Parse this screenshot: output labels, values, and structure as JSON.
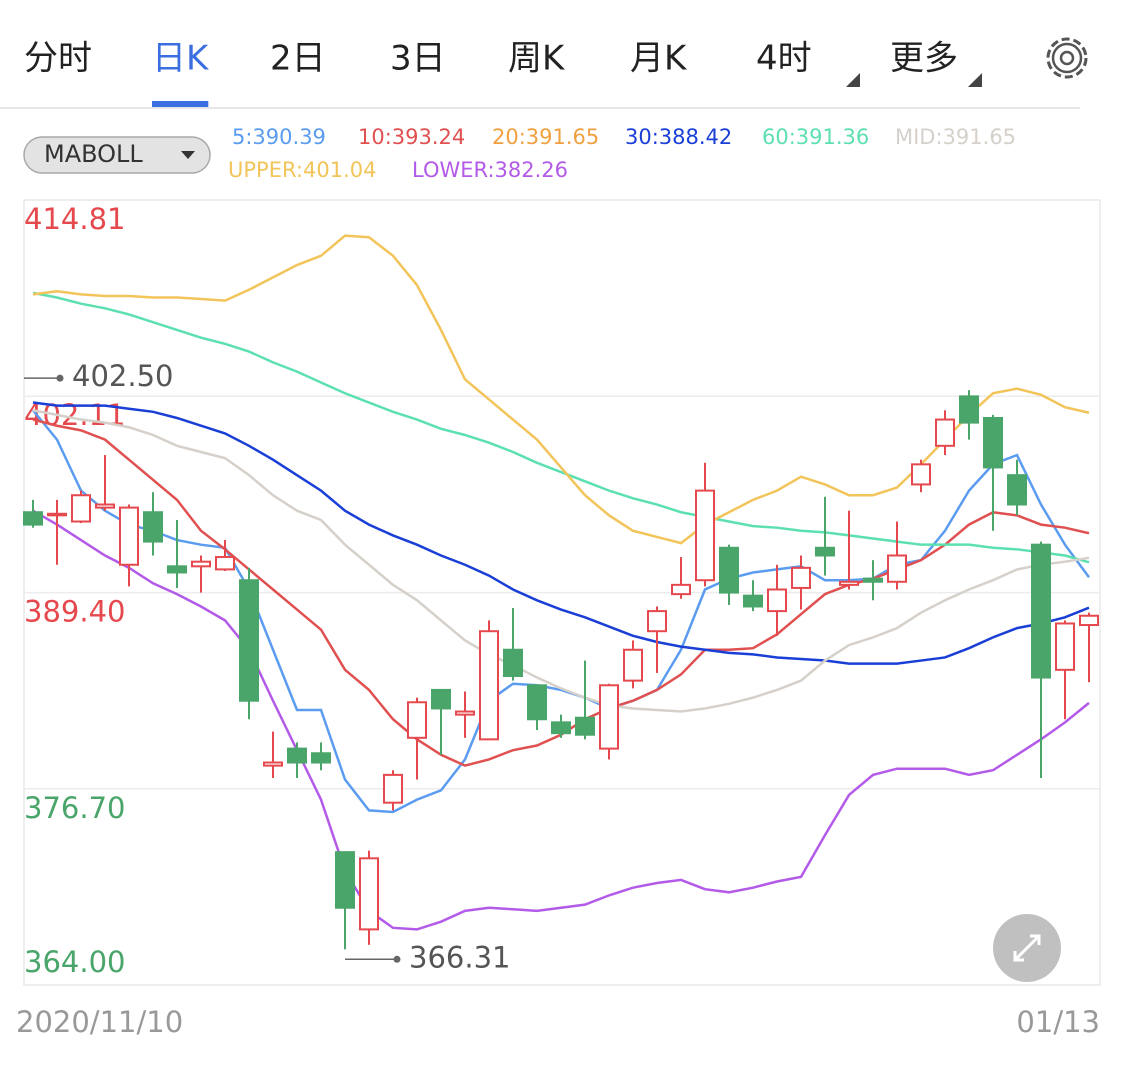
{
  "tabs": [
    "分时",
    "日K",
    "2日",
    "3日",
    "周K",
    "月K",
    "4时",
    "更多"
  ],
  "active_tab": 1,
  "indicator": "MABOLL",
  "chart_data": {
    "type": "candlestick",
    "categories": [
      "2020/11/10",
      null,
      null,
      null,
      null,
      null,
      null,
      null,
      null,
      null,
      null,
      null,
      null,
      null,
      null,
      null,
      null,
      null,
      null,
      null,
      null,
      null,
      null,
      null,
      null,
      null,
      null,
      null,
      null,
      null,
      null,
      null,
      null,
      null,
      null,
      null,
      null,
      null,
      null,
      null,
      null,
      null,
      null,
      null,
      "01/13"
    ],
    "open": [
      394.6,
      394.4,
      394.0,
      394.9,
      391.2,
      394.6,
      391.1,
      391.1,
      390.9,
      390.2,
      378.2,
      379.3,
      379.0,
      372.6,
      367.6,
      375.8,
      380.0,
      383.1,
      381.5,
      379.9,
      385.7,
      383.4,
      381.0,
      381.3,
      379.3,
      383.7,
      386.9,
      389.3,
      390.2,
      392.3,
      389.2,
      388.2,
      389.7,
      392.3,
      389.9,
      390.3,
      390.1,
      396.4,
      398.9,
      402.1,
      400.7,
      397.0,
      392.5,
      384.4,
      387.3
    ],
    "high": [
      395.4,
      395.4,
      396.0,
      398.3,
      395.1,
      395.9,
      394.1,
      391.8,
      392.8,
      391.0,
      380.4,
      379.7,
      379.7,
      372.6,
      372.7,
      377.9,
      382.6,
      383.1,
      383.0,
      387.6,
      388.4,
      383.4,
      381.5,
      385.0,
      383.5,
      386.3,
      388.5,
      391.7,
      397.8,
      392.5,
      390.2,
      391.2,
      391.8,
      395.6,
      394.7,
      391.5,
      394.0,
      398.0,
      401.2,
      402.5,
      400.9,
      398.0,
      392.7,
      387.6,
      388.1
    ],
    "low": [
      393.6,
      391.2,
      393.9,
      394.7,
      389.8,
      391.8,
      389.7,
      389.4,
      390.8,
      381.2,
      377.4,
      377.4,
      377.9,
      366.31,
      366.6,
      375.3,
      377.3,
      378.9,
      380.0,
      379.9,
      383.7,
      380.5,
      380.0,
      379.9,
      378.6,
      383.2,
      384.2,
      389.0,
      389.8,
      388.6,
      388.2,
      386.6,
      388.3,
      390.5,
      389.6,
      388.9,
      389.6,
      395.9,
      398.3,
      399.3,
      393.4,
      394.4,
      377.4,
      381.2,
      383.6
    ],
    "close": [
      393.8,
      394.5,
      395.7,
      395.1,
      394.9,
      392.7,
      390.7,
      391.4,
      391.7,
      382.4,
      378.4,
      378.4,
      378.4,
      369.0,
      372.2,
      377.6,
      382.3,
      381.9,
      381.7,
      386.9,
      384.0,
      381.2,
      380.3,
      380.2,
      383.4,
      385.7,
      388.2,
      389.9,
      396.0,
      389.4,
      388.5,
      389.6,
      391.0,
      391.8,
      390.1,
      390.1,
      391.8,
      397.7,
      400.6,
      400.4,
      397.5,
      395.1,
      383.9,
      387.4,
      387.9
    ],
    "up_color": "#e5484d",
    "down_color": "#4aa56a",
    "series": [
      {
        "name": "5:390.39",
        "color": "#5b9cf0",
        "values": [
          401.2,
          399.3,
          396.0,
          394.7,
          393.8,
          393.4,
          392.8,
          392.5,
          392.3,
          389.6,
          385.7,
          381.8,
          381.8,
          377.3,
          375.3,
          375.2,
          376.0,
          376.6,
          378.6,
          382.4,
          383.5,
          383.4,
          383.1,
          382.6,
          381.9,
          382.4,
          383.1,
          385.7,
          389.6,
          390.3,
          390.7,
          390.9,
          391.1,
          390.2,
          390.2,
          390.3,
          391.2,
          391.5,
          393.4,
          396.0,
          397.7,
          398.3,
          395.1,
          392.5,
          390.39
        ]
      },
      {
        "name": "10:393.24",
        "color": "#e05050",
        "values": [
          400.6,
          400.2,
          399.9,
          399.3,
          398.0,
          396.7,
          395.4,
          393.4,
          392.2,
          390.9,
          389.6,
          388.3,
          387.0,
          384.4,
          383.1,
          381.2,
          379.9,
          378.9,
          378.2,
          378.6,
          379.2,
          379.5,
          380.2,
          381.2,
          381.9,
          382.4,
          383.1,
          384.1,
          385.7,
          385.7,
          385.8,
          386.7,
          388.0,
          389.3,
          389.9,
          390.3,
          390.9,
          391.5,
          392.5,
          393.8,
          394.6,
          394.4,
          393.8,
          393.6,
          393.24
        ]
      },
      {
        "name": "20:391.65",
        "color": "#f0a040"
      },
      {
        "name": "30:388.42",
        "color": "#1a3fd6",
        "values": [
          401.7,
          401.5,
          401.5,
          401.5,
          401.3,
          401.1,
          400.7,
          400.2,
          399.7,
          398.9,
          398.0,
          397.0,
          396.0,
          394.7,
          393.8,
          393.1,
          392.5,
          391.8,
          391.2,
          390.5,
          389.6,
          388.9,
          388.3,
          387.8,
          387.2,
          386.6,
          386.2,
          385.9,
          385.7,
          385.5,
          385.4,
          385.2,
          385.1,
          385.0,
          384.8,
          384.8,
          384.8,
          385.0,
          385.2,
          385.8,
          386.5,
          387.1,
          387.4,
          387.8,
          388.42
        ]
      },
      {
        "name": "60:391.36",
        "color": "#5de0b0",
        "values": [
          408.8,
          408.5,
          408.1,
          407.8,
          407.4,
          406.9,
          406.4,
          405.9,
          405.5,
          405.0,
          404.3,
          403.7,
          403.0,
          402.3,
          401.7,
          401.1,
          400.6,
          400.0,
          399.6,
          399.1,
          398.5,
          397.8,
          397.2,
          396.6,
          396.0,
          395.5,
          395.1,
          394.6,
          394.3,
          394.0,
          393.7,
          393.6,
          393.4,
          393.3,
          393.1,
          392.9,
          392.7,
          392.5,
          392.5,
          392.5,
          392.3,
          392.2,
          392.0,
          391.8,
          391.36
        ]
      },
      {
        "name": "MID:391.65",
        "color": "#d6d0ca",
        "values": [
          401.2,
          400.9,
          400.6,
          400.4,
          400.1,
          399.6,
          398.9,
          398.5,
          398.1,
          397.0,
          395.7,
          394.7,
          394.1,
          392.5,
          391.2,
          389.9,
          388.9,
          387.6,
          386.3,
          385.4,
          384.7,
          383.9,
          383.2,
          382.6,
          382.1,
          381.9,
          381.8,
          381.7,
          381.9,
          382.2,
          382.6,
          383.1,
          383.7,
          385.0,
          386.0,
          386.5,
          387.1,
          388.1,
          388.9,
          389.6,
          390.2,
          390.9,
          391.2,
          391.4,
          391.65
        ]
      },
      {
        "name": "UPPER:401.04",
        "color": "#f2c45a",
        "values": [
          408.7,
          408.9,
          408.7,
          408.6,
          408.6,
          408.5,
          408.5,
          408.4,
          408.3,
          409.0,
          409.8,
          410.6,
          411.2,
          412.5,
          412.4,
          411.2,
          409.3,
          406.4,
          403.2,
          401.9,
          400.6,
          399.3,
          397.5,
          395.7,
          394.4,
          393.4,
          393.0,
          392.6,
          393.8,
          394.6,
          395.4,
          396.0,
          396.9,
          396.4,
          395.7,
          395.7,
          396.2,
          397.7,
          399.3,
          400.9,
          402.3,
          402.6,
          402.2,
          401.4,
          401.04
        ]
      },
      {
        "name": "LOWER:382.26",
        "color": "#b35ae8",
        "values": [
          394.7,
          393.8,
          392.8,
          391.8,
          391.0,
          390.0,
          389.3,
          388.5,
          387.6,
          385.7,
          382.4,
          379.2,
          376.0,
          371.4,
          368.8,
          367.7,
          367.6,
          368.1,
          368.8,
          369.0,
          368.9,
          368.8,
          369.0,
          369.2,
          369.8,
          370.3,
          370.6,
          370.8,
          370.2,
          370.0,
          370.3,
          370.7,
          371.0,
          373.7,
          376.3,
          377.6,
          378.0,
          378.0,
          378.0,
          377.6,
          377.9,
          378.9,
          379.9,
          381.0,
          382.26
        ]
      }
    ],
    "ylim": [
      364.0,
      414.81
    ],
    "yticks": [
      414.81,
      402.11,
      {
        "value": 389.4,
        "label": "389.40"
      },
      {
        "value": 376.7,
        "label": "376.70"
      },
      {
        "value": 364,
        "label": "364.00"
      }
    ],
    "ytick_colors": [
      "#e5484d",
      "#e5484d",
      "#e5484d",
      "#4aa56a",
      "#4aa56a"
    ],
    "grid": true,
    "max_label": "402.50",
    "min_label": "366.31"
  }
}
